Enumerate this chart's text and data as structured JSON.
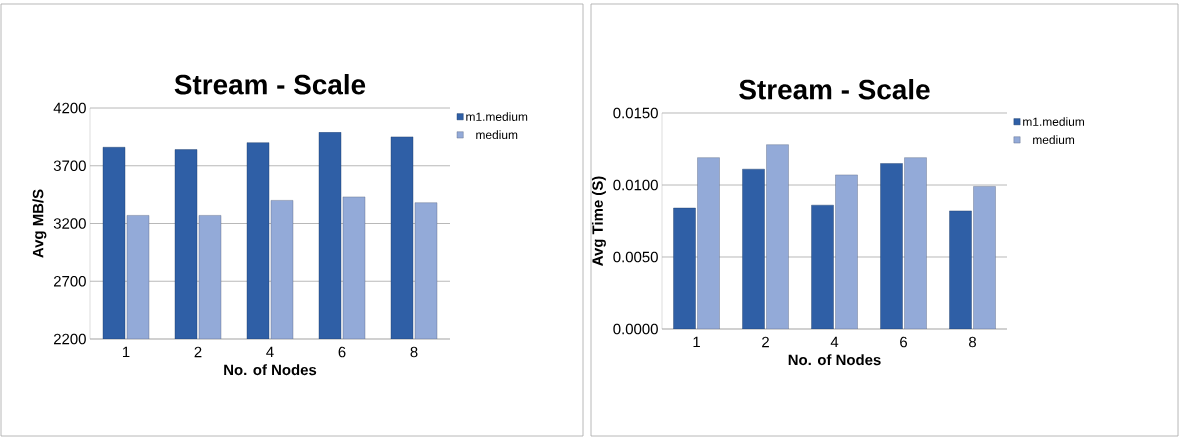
{
  "chart_data": [
    {
      "type": "bar",
      "title": "Stream - Scale",
      "xlabel": "No. of Nodes",
      "ylabel": "Avg MB/S",
      "categories": [
        "1",
        "2",
        "4",
        "6",
        "8"
      ],
      "series": [
        {
          "name": "m1.medium",
          "color": "#2f5fa6",
          "values": [
            3860,
            3840,
            3900,
            3990,
            3950
          ]
        },
        {
          "name": "medium",
          "color": "#93aad8",
          "values": [
            3270,
            3270,
            3400,
            3430,
            3380
          ]
        }
      ],
      "ylim": [
        2200,
        4200
      ],
      "yticks": [
        2200,
        2700,
        3200,
        3700,
        4200
      ],
      "grid": "y",
      "legend": "top right"
    },
    {
      "type": "bar",
      "title": "Stream - Scale",
      "xlabel": "No. of Nodes",
      "ylabel": "Avg Time (S)",
      "categories": [
        "1",
        "2",
        "4",
        "6",
        "8"
      ],
      "series": [
        {
          "name": "m1.medium",
          "color": "#2f5fa6",
          "values": [
            0.0084,
            0.0111,
            0.0086,
            0.0115,
            0.0082
          ]
        },
        {
          "name": "medium",
          "color": "#93aad8",
          "values": [
            0.0119,
            0.0128,
            0.0107,
            0.0119,
            0.0099
          ]
        }
      ],
      "ylim": [
        0,
        0.015
      ],
      "yticks": [
        {
          "value": 0,
          "label": "0.0000"
        },
        {
          "value": 0.005,
          "label": "0.0050"
        },
        {
          "value": 0.01,
          "label": "0.0100"
        },
        {
          "value": 0.015,
          "label": "0.0150"
        }
      ],
      "grid": "y",
      "legend": "top right"
    }
  ]
}
